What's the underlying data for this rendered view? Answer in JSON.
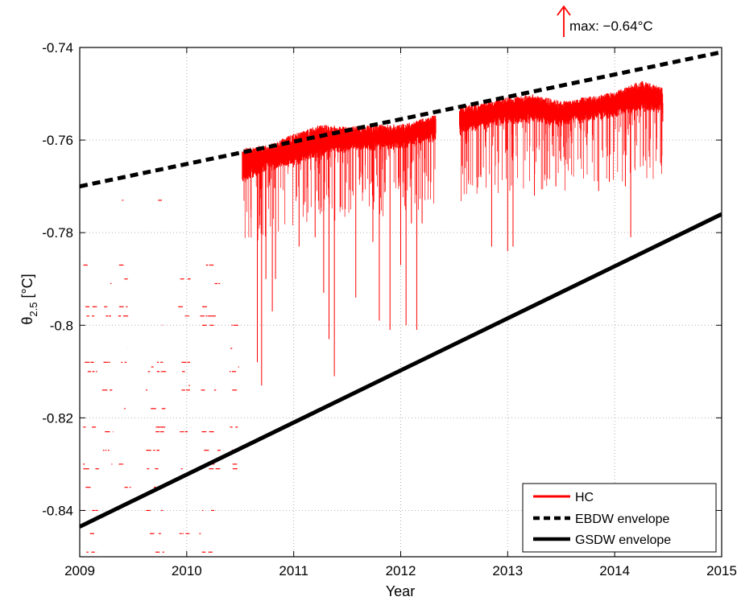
{
  "chart_data": {
    "type": "line",
    "xlabel": "Year",
    "ylabel": {
      "main": "θ",
      "sub": "2.5",
      "unit": " [°C]"
    },
    "xlim": [
      2009,
      2015
    ],
    "ylim": [
      -0.85,
      -0.74
    ],
    "x_ticks": [
      2009,
      2010,
      2011,
      2012,
      2013,
      2014,
      2015
    ],
    "x_tick_labels": [
      "2009",
      "2010",
      "2011",
      "2012",
      "2013",
      "2014",
      "2015"
    ],
    "y_ticks": [
      -0.84,
      -0.82,
      -0.8,
      -0.78,
      -0.76,
      -0.74
    ],
    "y_tick_labels": [
      "-0.84",
      "-0.82",
      "-0.8",
      "-0.78",
      "-0.76",
      "-0.74"
    ],
    "grid": true,
    "legend_position": "bottom-right",
    "annotation": {
      "text": "max: −0.64°C",
      "x": 2013.52,
      "arrow": "up",
      "color": "#ff0000"
    },
    "series": [
      {
        "name": "HC",
        "type": "scatter-dense",
        "color": "#ff0000",
        "upper_envelope": [
          [
            2010.52,
            -0.7625
          ],
          [
            2010.75,
            -0.762
          ],
          [
            2011.0,
            -0.7595
          ],
          [
            2011.25,
            -0.7575
          ],
          [
            2011.5,
            -0.758
          ],
          [
            2011.75,
            -0.7575
          ],
          [
            2012.0,
            -0.7575
          ],
          [
            2012.25,
            -0.756
          ],
          [
            2012.6,
            -0.7535
          ],
          [
            2013.0,
            -0.7515
          ],
          [
            2013.25,
            -0.751
          ],
          [
            2013.5,
            -0.7525
          ],
          [
            2013.75,
            -0.7515
          ],
          [
            2014.0,
            -0.7505
          ],
          [
            2014.25,
            -0.748
          ],
          [
            2014.45,
            -0.7495
          ]
        ],
        "lower_envelope": [
          [
            2010.52,
            -0.767
          ],
          [
            2010.75,
            -0.764
          ],
          [
            2011.0,
            -0.763
          ],
          [
            2011.25,
            -0.761
          ],
          [
            2011.5,
            -0.76
          ],
          [
            2011.75,
            -0.7595
          ],
          [
            2012.0,
            -0.7595
          ],
          [
            2012.25,
            -0.758
          ],
          [
            2012.6,
            -0.756
          ],
          [
            2013.0,
            -0.754
          ],
          [
            2013.25,
            -0.7535
          ],
          [
            2013.5,
            -0.7545
          ],
          [
            2013.75,
            -0.7535
          ],
          [
            2014.0,
            -0.7525
          ],
          [
            2014.25,
            -0.751
          ],
          [
            2014.45,
            -0.752
          ]
        ],
        "dropouts": [
          [
            2010.6,
            -0.775
          ],
          [
            2010.66,
            -0.808
          ],
          [
            2010.7,
            -0.813
          ],
          [
            2010.74,
            -0.79
          ],
          [
            2010.8,
            -0.797
          ],
          [
            2010.83,
            -0.79
          ],
          [
            2011.05,
            -0.783
          ],
          [
            2011.2,
            -0.781
          ],
          [
            2011.28,
            -0.793
          ],
          [
            2011.33,
            -0.803
          ],
          [
            2011.38,
            -0.811
          ],
          [
            2011.58,
            -0.794
          ],
          [
            2011.74,
            -0.782
          ],
          [
            2011.8,
            -0.799
          ],
          [
            2011.9,
            -0.801
          ],
          [
            2012.0,
            -0.787
          ],
          [
            2012.05,
            -0.8
          ],
          [
            2012.1,
            -0.778
          ],
          [
            2012.15,
            -0.801
          ],
          [
            2012.2,
            -0.778
          ],
          [
            2012.75,
            -0.768
          ],
          [
            2012.85,
            -0.783
          ],
          [
            2013.0,
            -0.784
          ],
          [
            2013.05,
            -0.783
          ],
          [
            2013.25,
            -0.772
          ],
          [
            2013.45,
            -0.77
          ],
          [
            2013.85,
            -0.771
          ],
          [
            2013.95,
            -0.769
          ],
          [
            2014.1,
            -0.77
          ],
          [
            2014.15,
            -0.781
          ],
          [
            2014.45,
            -0.756
          ]
        ],
        "early_levels": {
          "segments": [
            [
              2009.02,
              2009.18
            ],
            [
              2009.2,
              2009.32
            ],
            [
              2009.36,
              2009.48
            ],
            [
              2009.6,
              2009.82
            ],
            [
              2009.92,
              2010.06
            ],
            [
              2010.1,
              2010.32
            ],
            [
              2010.4,
              2010.5
            ]
          ],
          "levels": [
            -0.773,
            -0.787,
            -0.79,
            -0.791,
            -0.796,
            -0.798,
            -0.8,
            -0.805,
            -0.808,
            -0.809,
            -0.81,
            -0.813,
            -0.814,
            -0.818,
            -0.822,
            -0.823,
            -0.827,
            -0.83,
            -0.831,
            -0.835,
            -0.84,
            -0.845,
            -0.849
          ]
        }
      },
      {
        "name": "EBDW envelope",
        "type": "line",
        "style": "dashed",
        "color": "#000000",
        "x": [
          2009,
          2015
        ],
        "y": [
          -0.77,
          -0.741
        ]
      },
      {
        "name": "GSDW envelope",
        "type": "line",
        "style": "solid",
        "color": "#000000",
        "x": [
          2009,
          2015
        ],
        "y": [
          -0.8435,
          -0.776
        ]
      }
    ]
  }
}
